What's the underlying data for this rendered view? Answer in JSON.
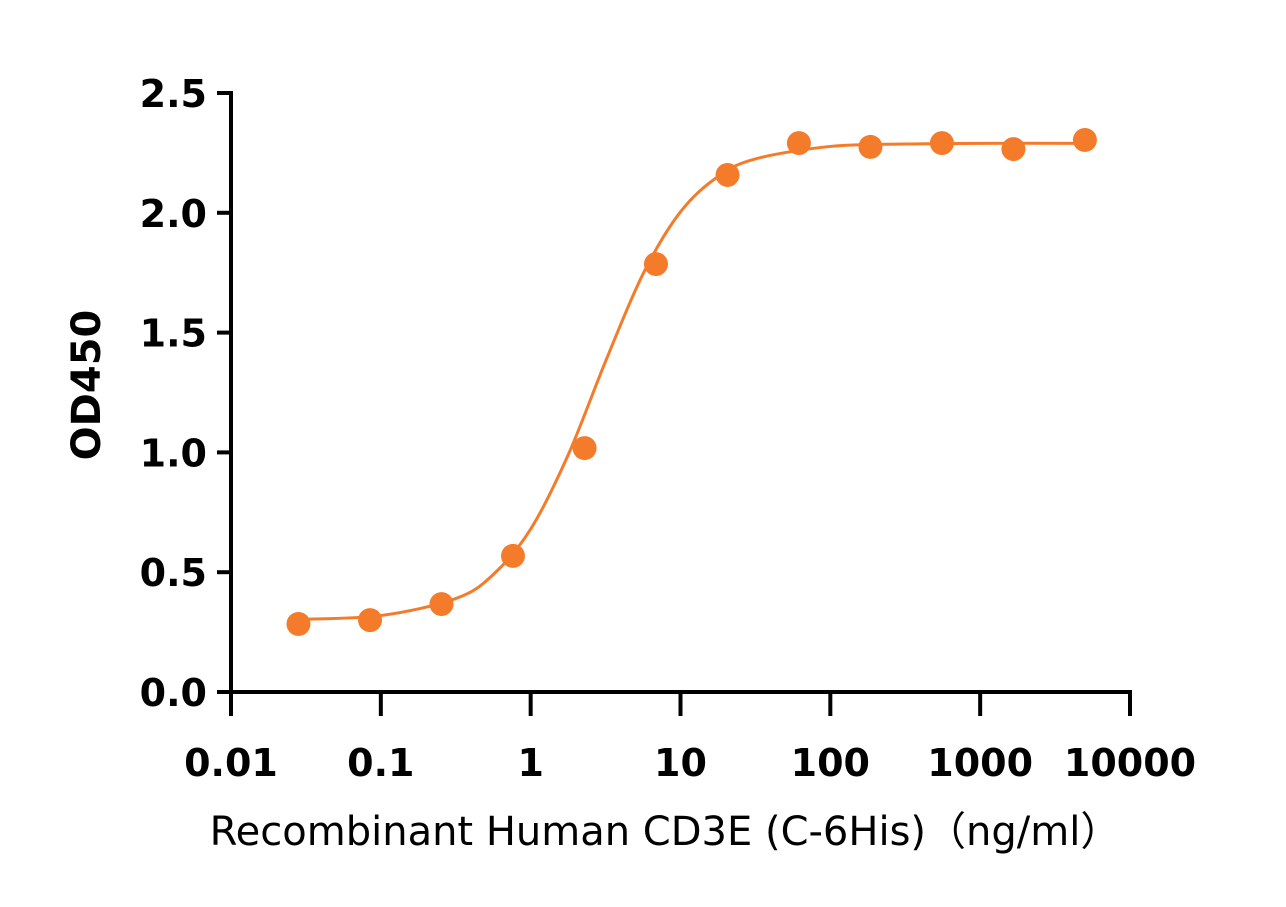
{
  "chart_data": {
    "type": "scatter",
    "x_label": "Recombinant Human CD3E (C-6His)（ng/ml）",
    "y_label": "OD450",
    "x_scale": "log",
    "color": "#f47b2a",
    "x": [
      0.0282,
      0.0847,
      0.254,
      0.762,
      2.29,
      6.86,
      20.6,
      61.7,
      185.2,
      555.6,
      1666.7,
      5000
    ],
    "values": [
      0.284,
      0.3,
      0.367,
      0.568,
      1.018,
      1.786,
      2.158,
      2.291,
      2.275,
      2.291,
      2.266,
      2.304
    ],
    "curve": {
      "x": [
        0.0282,
        0.1,
        0.316,
        0.562,
        1,
        1.778,
        3.162,
        5.623,
        10,
        17.78,
        31.62,
        100,
        316.2,
        1000,
        5000
      ],
      "values": [
        0.303,
        0.319,
        0.39,
        0.49,
        0.68,
        0.989,
        1.38,
        1.745,
        2.004,
        2.151,
        2.225,
        2.277,
        2.287,
        2.29,
        2.29
      ]
    },
    "xlim": [
      0.01,
      10000
    ],
    "xticks": [
      0.01,
      0.1,
      1,
      10,
      100,
      1000,
      10000
    ],
    "ylim": [
      0,
      2.5
    ],
    "yticks": [
      {
        "value": 0,
        "label": "0.0"
      },
      0.5,
      {
        "value": 1,
        "label": "1.0"
      },
      1.5,
      {
        "value": 2,
        "label": "2.0"
      },
      2.5
    ]
  }
}
